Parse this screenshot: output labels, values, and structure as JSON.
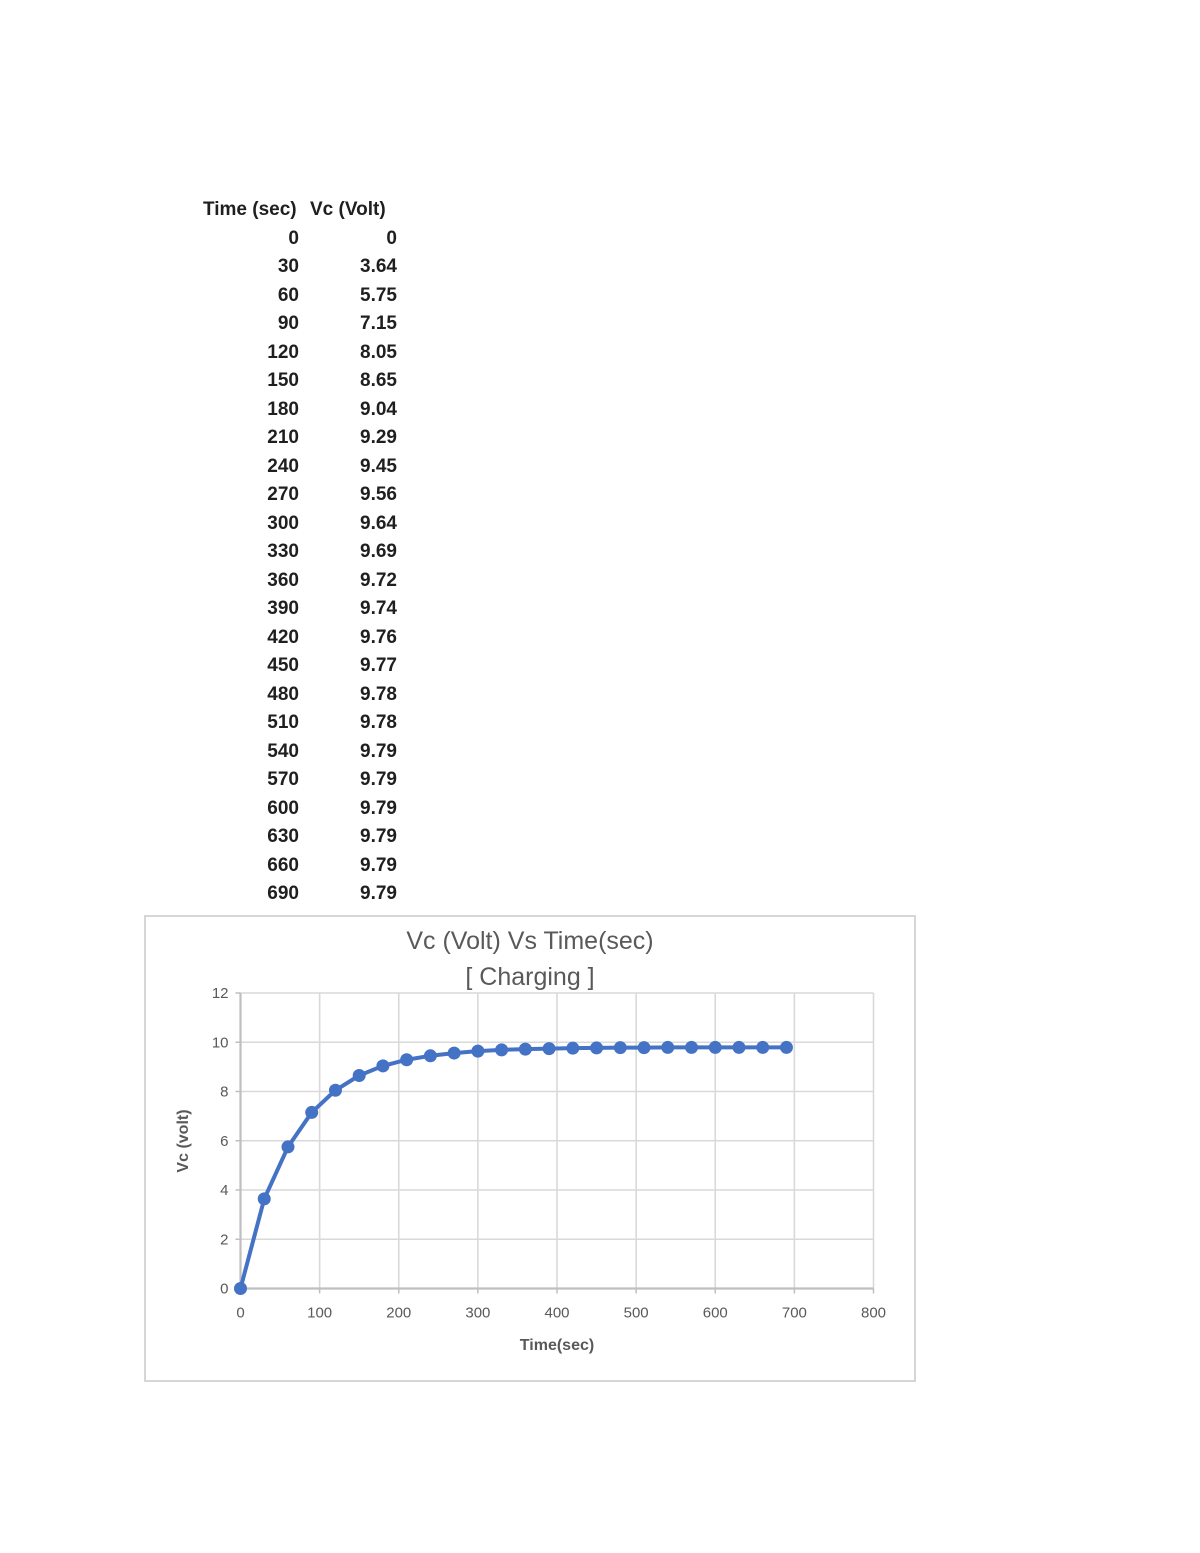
{
  "table": {
    "columns": [
      "Time (sec)",
      "Vc (Volt)"
    ],
    "rows": [
      [
        0,
        0
      ],
      [
        30,
        3.64
      ],
      [
        60,
        5.75
      ],
      [
        90,
        7.15
      ],
      [
        120,
        8.05
      ],
      [
        150,
        8.65
      ],
      [
        180,
        9.04
      ],
      [
        210,
        9.29
      ],
      [
        240,
        9.45
      ],
      [
        270,
        9.56
      ],
      [
        300,
        9.64
      ],
      [
        330,
        9.69
      ],
      [
        360,
        9.72
      ],
      [
        390,
        9.74
      ],
      [
        420,
        9.76
      ],
      [
        450,
        9.77
      ],
      [
        480,
        9.78
      ],
      [
        510,
        9.78
      ],
      [
        540,
        9.79
      ],
      [
        570,
        9.79
      ],
      [
        600,
        9.79
      ],
      [
        630,
        9.79
      ],
      [
        660,
        9.79
      ],
      [
        690,
        9.79
      ]
    ]
  },
  "chart_data": {
    "type": "line",
    "title": "Vc (Volt) Vs Time(sec)",
    "subtitle": "[ Charging ]",
    "xlabel": "Time(sec)",
    "ylabel": "Vc (volt)",
    "x": [
      0,
      30,
      60,
      90,
      120,
      150,
      180,
      210,
      240,
      270,
      300,
      330,
      360,
      390,
      420,
      450,
      480,
      510,
      540,
      570,
      600,
      630,
      660,
      690
    ],
    "series": [
      {
        "name": "Vc (Volt)",
        "values": [
          0,
          3.64,
          5.75,
          7.15,
          8.05,
          8.65,
          9.04,
          9.29,
          9.45,
          9.56,
          9.64,
          9.69,
          9.72,
          9.74,
          9.76,
          9.77,
          9.78,
          9.78,
          9.79,
          9.79,
          9.79,
          9.79,
          9.79,
          9.79
        ]
      }
    ],
    "xlim": [
      0,
      800
    ],
    "ylim": [
      0,
      12
    ],
    "xticks": [
      0,
      100,
      200,
      300,
      400,
      500,
      600,
      700,
      800
    ],
    "yticks": [
      0,
      2,
      4,
      6,
      8,
      10,
      12
    ],
    "grid": true,
    "legend": "none",
    "marker": "circle"
  },
  "colors": {
    "series": "#4472C4",
    "gridline": "#d9d9d9",
    "axis": "#bfbfbf",
    "chart_text": "#595959",
    "table_text": "#1f1f1f",
    "chart_border": "#d6d6d6"
  }
}
